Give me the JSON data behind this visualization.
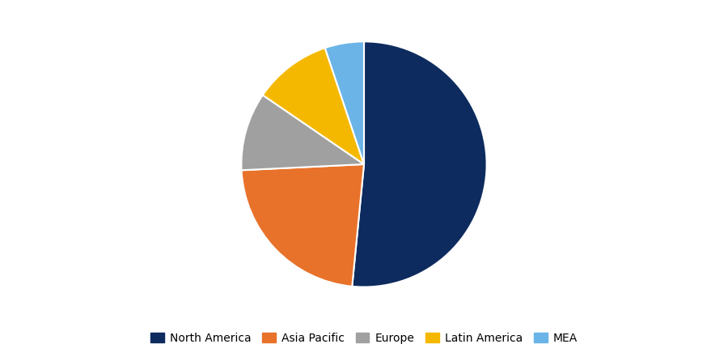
{
  "labels": [
    "North America",
    "Asia Pacific",
    "Europe",
    "Latin America",
    "MEA"
  ],
  "values": [
    50,
    22,
    10,
    10,
    5
  ],
  "colors": [
    "#0d2b5e",
    "#e8722a",
    "#a0a0a0",
    "#f5b800",
    "#6ab4e8"
  ],
  "legend_order": [
    0,
    1,
    2,
    3,
    4
  ],
  "startangle": 90,
  "figsize": [
    9.0,
    4.46
  ],
  "dpi": 100,
  "background_color": "#ffffff",
  "wedge_edge_color": "#ffffff",
  "wedge_linewidth": 1.5
}
